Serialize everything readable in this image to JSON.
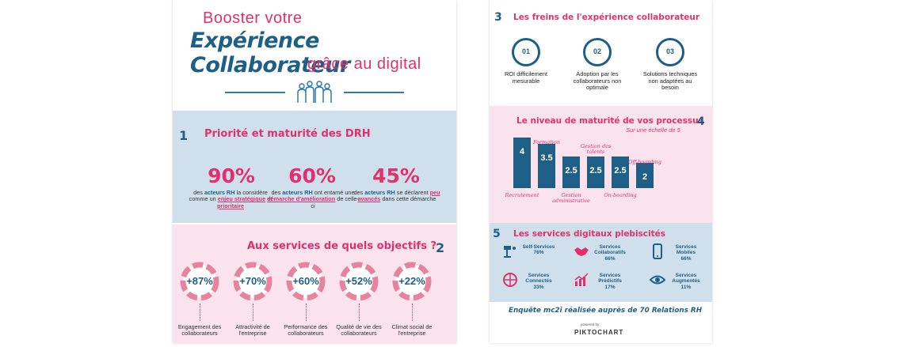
{
  "left": {
    "title_line1": "Booster votre",
    "title_line2": "Expérience Collaborateur",
    "title_line3": "grâce au digital",
    "section1": {
      "num": "1",
      "title": "Priorité et maturité des DRH",
      "stats": [
        {
          "value": "90%",
          "pre": "des ",
          "bold": "acteurs RH",
          "mid": " la considère comme un ",
          "hl": "enjeu stratégique",
          "post": " et ",
          "hl2": "prioritaire",
          "tail": ""
        },
        {
          "value": "60%",
          "pre": "des ",
          "bold": "acteurs RH",
          "mid": " ont entamé une ",
          "hl": "démarche d'amélioration",
          "post": " de celle-ci",
          "hl2": "",
          "tail": ""
        },
        {
          "value": "45%",
          "pre": "des ",
          "bold": "acteurs RH",
          "mid": " se déclarent ",
          "hl": "peu avancés",
          "post": " dans cette démarche",
          "hl2": "",
          "tail": ""
        }
      ]
    },
    "section2": {
      "num": "2",
      "title": "Aux services de quels objectifs ?",
      "items": [
        {
          "value": "+87%",
          "label": "Engagement des collaborateurs"
        },
        {
          "value": "+70%",
          "label": "Attractivité de l'entreprise"
        },
        {
          "value": "+60%",
          "label": "Performance des collaborateurs"
        },
        {
          "value": "+52%",
          "label": "Qualité de vie des collaborateurs"
        },
        {
          "value": "+22%",
          "label": "Climat social de l'entreprise"
        }
      ]
    }
  },
  "right": {
    "section3": {
      "num": "3",
      "title": "Les freins de l'expérience collaborateur",
      "items": [
        {
          "num": "01",
          "label": "ROI difficilement mesurable"
        },
        {
          "num": "02",
          "label": "Adoption par les collaborateurs non optimale"
        },
        {
          "num": "03",
          "label": "Solutions techniques non adaptées au besoin"
        }
      ]
    },
    "section4": {
      "num": "4",
      "title": "Le niveau de maturité de vos processus",
      "subtitle": "Sur une échelle de 5",
      "chart_data": {
        "type": "bar",
        "categories": [
          "Recrutement",
          "Formation",
          "Gestion administrative",
          "Gestion des talents",
          "On-boarding",
          "Off-boarding"
        ],
        "values": [
          4,
          3.5,
          2.5,
          2.5,
          2.5,
          2
        ],
        "value_labels": [
          "4",
          "3.5",
          "2.5",
          "2.5",
          "2.5",
          "2"
        ],
        "ylim": [
          0,
          5
        ]
      }
    },
    "section5": {
      "num": "5",
      "title": "Les services digitaux plebiscités",
      "items": [
        {
          "icon": "self-service-icon",
          "name": "Self-Services",
          "pct": "76%"
        },
        {
          "icon": "handshake-icon",
          "name": "Services Collaboratifs",
          "pct": "66%"
        },
        {
          "icon": "mobile-icon",
          "name": "Services Mobiles",
          "pct": "66%"
        },
        {
          "icon": "network-icon",
          "name": "Services Connectés",
          "pct": "33%"
        },
        {
          "icon": "chart-icon",
          "name": "Services Prédictifs",
          "pct": "17%"
        },
        {
          "icon": "eye-icon",
          "name": "Services Augmentés",
          "pct": "11%"
        }
      ]
    },
    "footer": "Enquête mc2i réalisée auprès de 70 Relations RH",
    "credit_small": "powered by",
    "credit": "PIKTOCHART"
  },
  "colors": {
    "pink": "#e2306f",
    "blue": "#1d5f86",
    "band_blue": "#cfe0ec",
    "band_pink": "#fbe3ee"
  }
}
